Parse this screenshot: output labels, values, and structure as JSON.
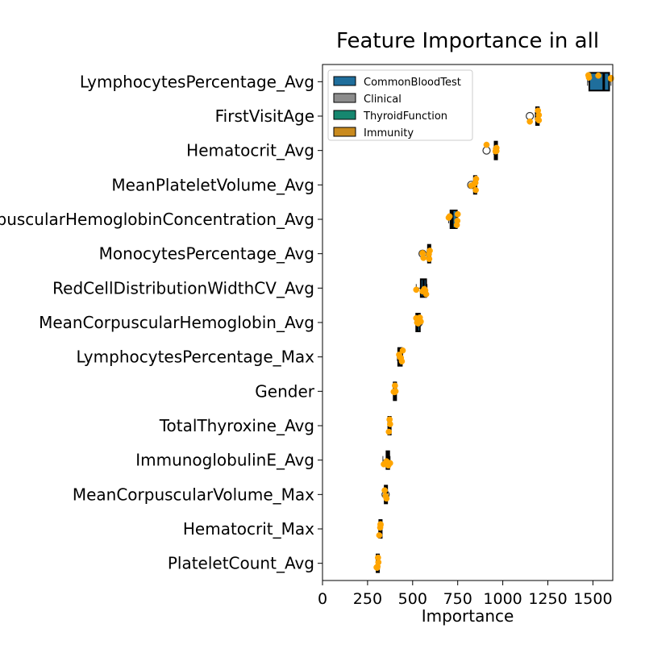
{
  "chart_data": {
    "type": "box",
    "title": "Feature Importance in all",
    "xlabel": "Importance",
    "ylabel": "",
    "xlim": [
      0,
      1610
    ],
    "xticks": [
      0,
      250,
      500,
      750,
      1000,
      1250,
      1500
    ],
    "grid": false,
    "legend_position": "top-left",
    "legend": [
      {
        "name": "CommonBloodTest",
        "color": "#1f6e9c"
      },
      {
        "name": "Clinical",
        "color": "#8c8c8c"
      },
      {
        "name": "ThyroidFunction",
        "color": "#16876f"
      },
      {
        "name": "Immunity",
        "color": "#c98a1e"
      }
    ],
    "point_color": "#ffa500",
    "features": [
      {
        "name": "LymphocytesPercentage_Avg",
        "group": "CommonBloodTest",
        "q1": 1480,
        "median": 1560,
        "q3": 1590,
        "whisker_low": 1470,
        "whisker_high": 1600,
        "outliers": [],
        "points": [
          1475,
          1478,
          1530,
          1600,
          1600
        ]
      },
      {
        "name": "FirstVisitAge",
        "group": "Clinical",
        "q1": 1185,
        "median": 1195,
        "q3": 1200,
        "whisker_low": 1180,
        "whisker_high": 1200,
        "outliers": [
          1150
        ],
        "points": [
          1150,
          1195,
          1195,
          1200,
          1200
        ]
      },
      {
        "name": "Hematocrit_Avg",
        "group": "CommonBloodTest",
        "q1": 955,
        "median": 958,
        "q3": 965,
        "whisker_low": 950,
        "whisker_high": 965,
        "outliers": [
          910
        ],
        "points": [
          910,
          960,
          962,
          965,
          965
        ]
      },
      {
        "name": "MeanPlateletVolume_Avg",
        "group": "CommonBloodTest",
        "q1": 840,
        "median": 845,
        "q3": 850,
        "whisker_low": 835,
        "whisker_high": 855,
        "outliers": [
          825
        ],
        "points": [
          825,
          840,
          848,
          850,
          852
        ]
      },
      {
        "name": "MeanCorpuscularHemoglobinConcentration_Avg",
        "group": "CommonBloodTest",
        "q1": 710,
        "median": 720,
        "q3": 745,
        "whisker_low": 700,
        "whisker_high": 750,
        "outliers": [],
        "points": [
          700,
          705,
          745,
          748,
          750
        ]
      },
      {
        "name": "MonocytesPercentage_Avg",
        "group": "CommonBloodTest",
        "q1": 585,
        "median": 590,
        "q3": 595,
        "whisker_low": 580,
        "whisker_high": 595,
        "outliers": [
          555
        ],
        "points": [
          555,
          560,
          590,
          592,
          595
        ]
      },
      {
        "name": "RedCellDistributionWidthCV_Avg",
        "group": "CommonBloodTest",
        "q1": 545,
        "median": 560,
        "q3": 575,
        "whisker_low": 520,
        "whisker_high": 580,
        "outliers": [],
        "points": [
          520,
          555,
          565,
          570,
          575
        ]
      },
      {
        "name": "MeanCorpuscularHemoglobin_Avg",
        "group": "CommonBloodTest",
        "q1": 520,
        "median": 525,
        "q3": 540,
        "whisker_low": 520,
        "whisker_high": 545,
        "outliers": [
          535
        ],
        "points": [
          520,
          525,
          530,
          540,
          545
        ]
      },
      {
        "name": "LymphocytesPercentage_Max",
        "group": "CommonBloodTest",
        "q1": 420,
        "median": 425,
        "q3": 440,
        "whisker_low": 415,
        "whisker_high": 445,
        "outliers": [],
        "points": [
          425,
          430,
          435,
          440,
          445
        ]
      },
      {
        "name": "Gender",
        "group": "Clinical",
        "q1": 395,
        "median": 400,
        "q3": 405,
        "whisker_low": 395,
        "whisker_high": 405,
        "outliers": [],
        "points": [
          395,
          398,
          400,
          402,
          405
        ]
      },
      {
        "name": "TotalThyroxine_Avg",
        "group": "ThyroidFunction",
        "q1": 365,
        "median": 370,
        "q3": 375,
        "whisker_low": 365,
        "whisker_high": 375,
        "outliers": [],
        "points": [
          368,
          372,
          375
        ]
      },
      {
        "name": "ImmunoglobulinE_Avg",
        "group": "Immunity",
        "q1": 355,
        "median": 362,
        "q3": 370,
        "whisker_low": 335,
        "whisker_high": 375,
        "outliers": [],
        "points": [
          340,
          355,
          365,
          370,
          375
        ]
      },
      {
        "name": "MeanCorpuscularVolume_Max",
        "group": "CommonBloodTest",
        "q1": 345,
        "median": 350,
        "q3": 355,
        "whisker_low": 340,
        "whisker_high": 360,
        "outliers": [
          350
        ],
        "points": [
          345,
          350,
          355
        ]
      },
      {
        "name": "Hematocrit_Max",
        "group": "CommonBloodTest",
        "q1": 315,
        "median": 318,
        "q3": 322,
        "whisker_low": 312,
        "whisker_high": 325,
        "outliers": [],
        "points": [
          315,
          320,
          322,
          322
        ]
      },
      {
        "name": "PlateletCount_Avg",
        "group": "CommonBloodTest",
        "q1": 300,
        "median": 303,
        "q3": 308,
        "whisker_low": 298,
        "whisker_high": 310,
        "outliers": [],
        "points": [
          300,
          303,
          305,
          308,
          310
        ]
      }
    ]
  }
}
